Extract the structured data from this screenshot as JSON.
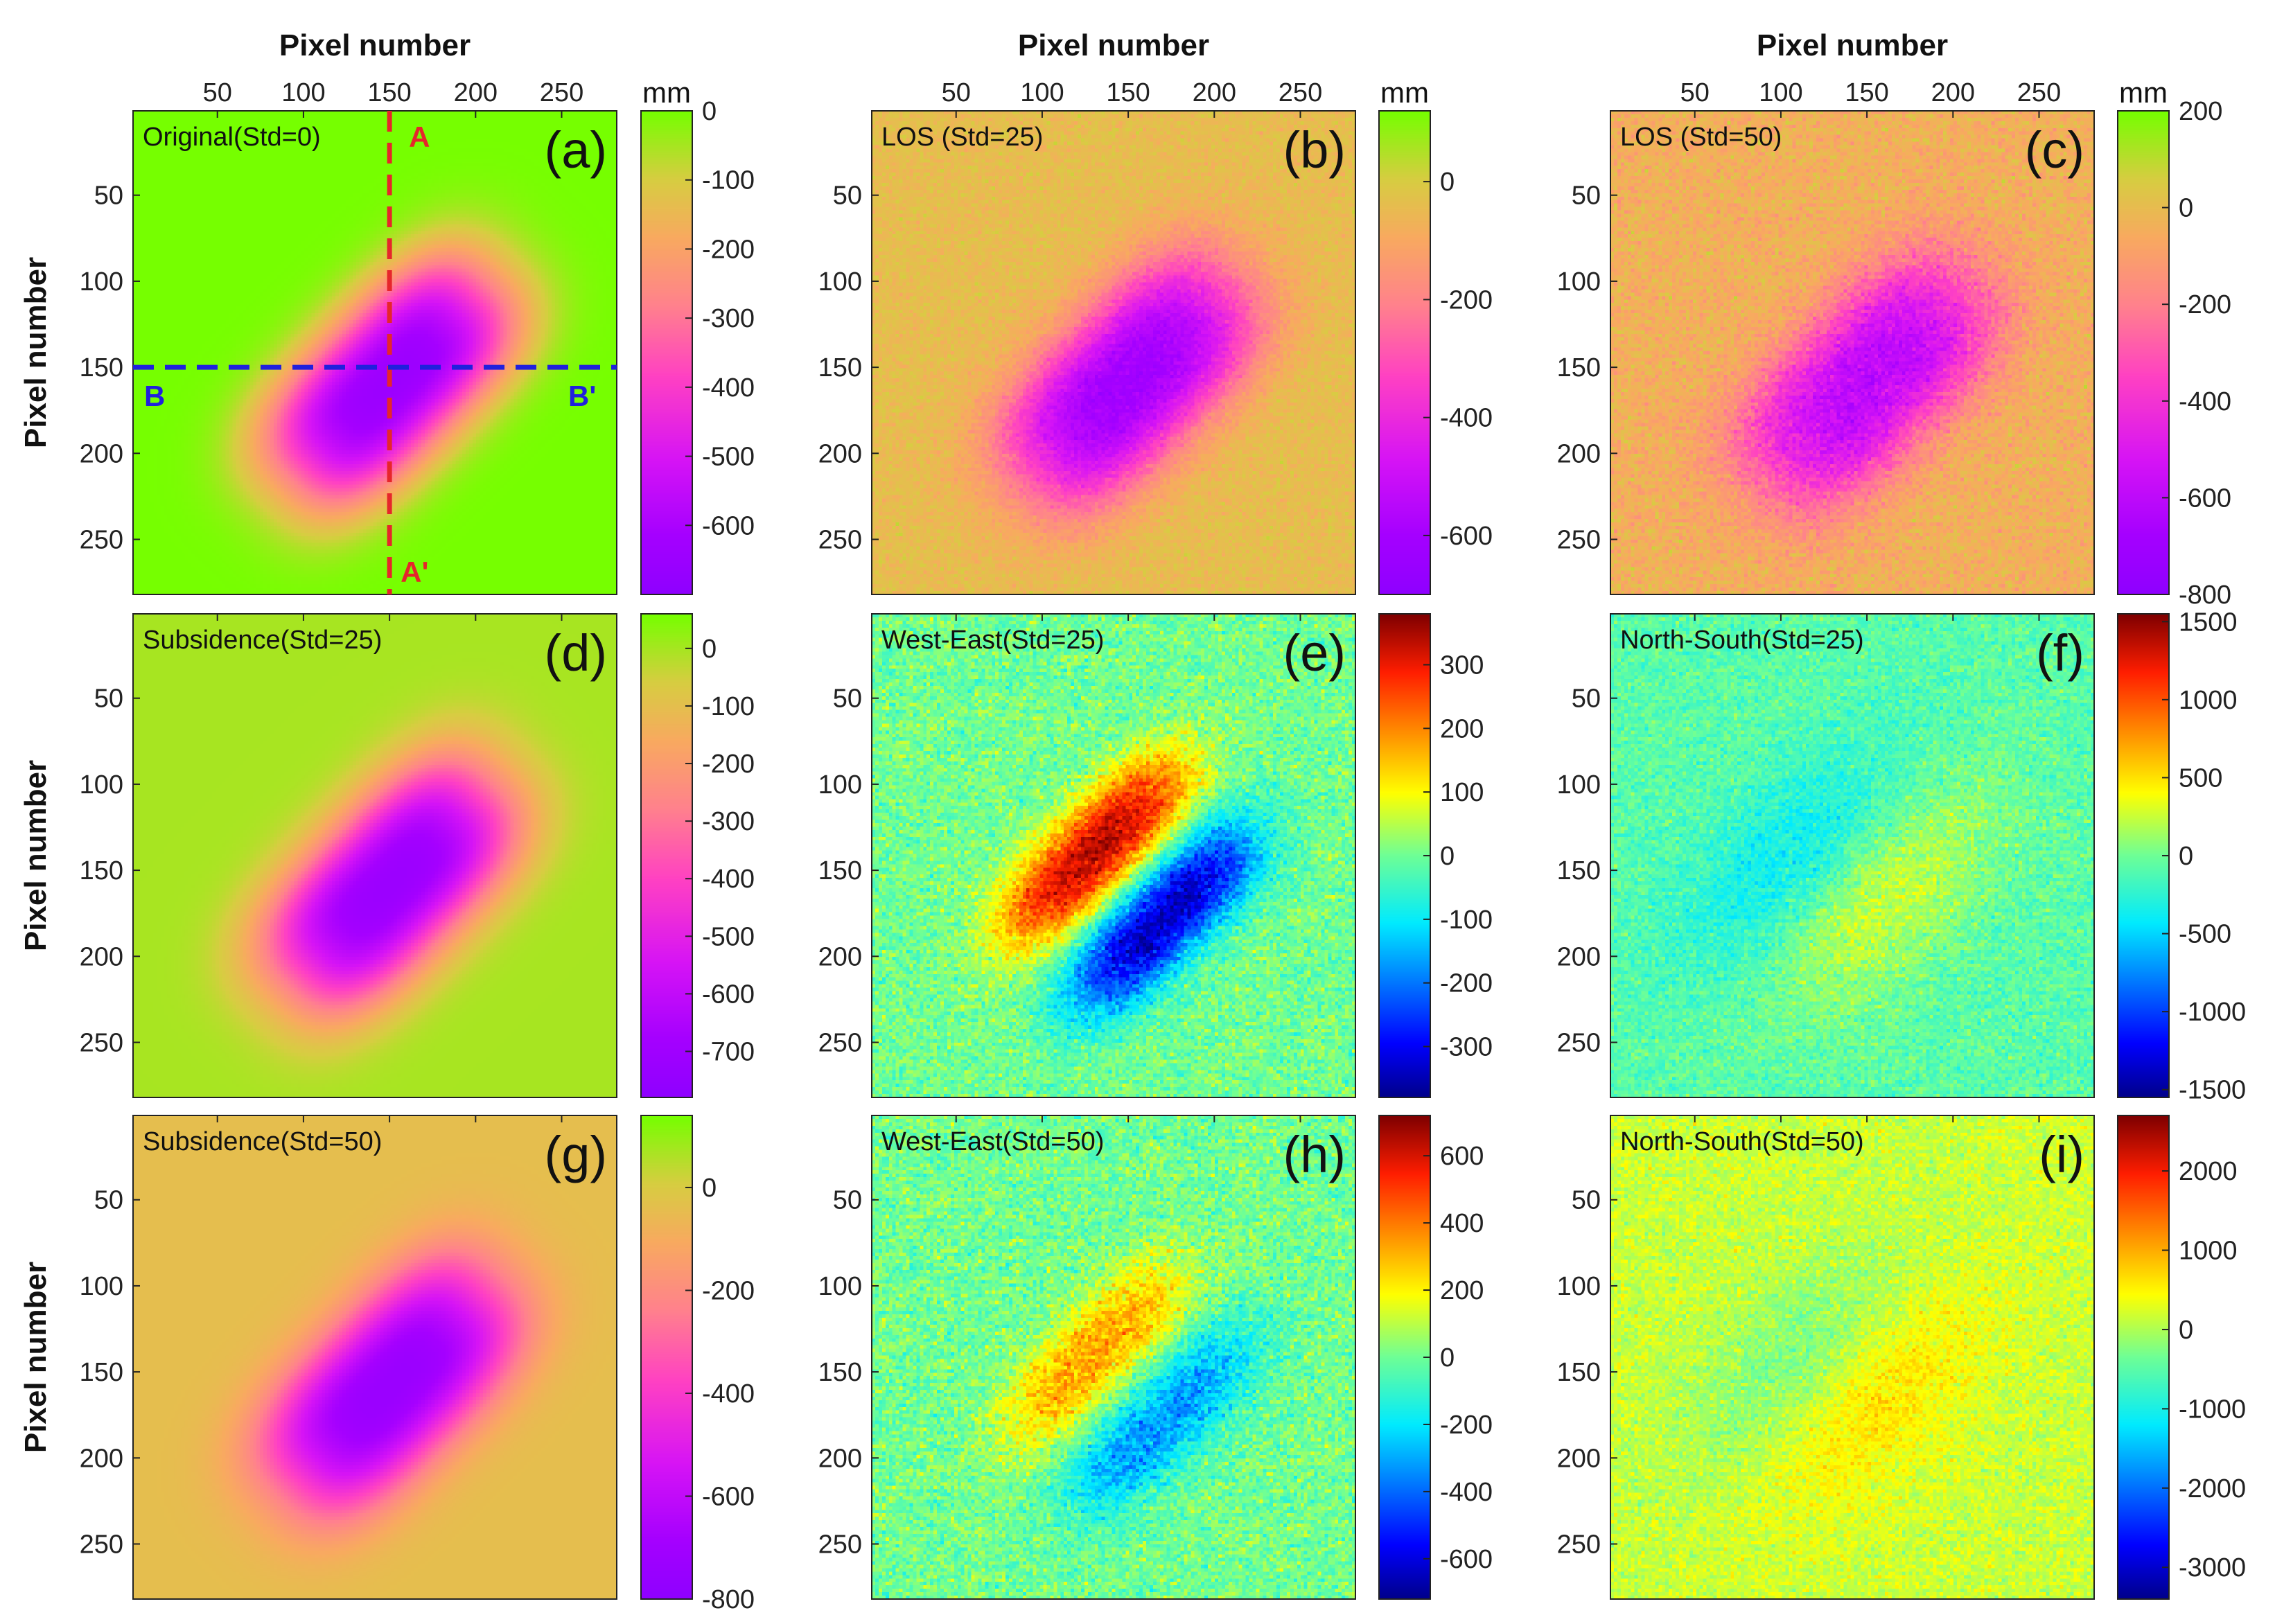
{
  "figure": {
    "x_axis_title": "Pixel number",
    "y_axis_title": "Pixel number",
    "colorbar_unit": "mm"
  },
  "chart_data": [
    {
      "id": "a",
      "type": "heatmap",
      "panel_label": "(a)",
      "title": "Original(Std=0)",
      "colormap": "rainbow_subsidence",
      "noise": 0,
      "pattern": "subsidence",
      "peak": -650,
      "background": 0,
      "clim": [
        -700,
        0
      ],
      "colorbar_ticks": [
        0,
        -100,
        -200,
        -300,
        -400,
        -500,
        -600
      ],
      "xlim": [
        1,
        282
      ],
      "ylim": [
        1,
        282
      ],
      "xticks": [
        50,
        100,
        150,
        200,
        250
      ],
      "yticks": [
        50,
        100,
        150,
        200,
        250
      ],
      "profiles": [
        {
          "name": "A-A'",
          "orientation": "vertical",
          "pixel": 150,
          "color": "#e6262b",
          "start_label": "A",
          "end_label": "A'"
        },
        {
          "name": "B-B'",
          "orientation": "horizontal",
          "pixel": 150,
          "color": "#2020dd",
          "start_label": "B",
          "end_label": "B'"
        }
      ]
    },
    {
      "id": "b",
      "type": "heatmap",
      "panel_label": "(b)",
      "title": "LOS (Std=25)",
      "colormap": "rainbow_subsidence",
      "noise": 25,
      "pattern": "subsidence",
      "peak": -610,
      "background": -40,
      "clim": [
        -700,
        120
      ],
      "colorbar_ticks": [
        0,
        -200,
        -400,
        -600
      ]
    },
    {
      "id": "c",
      "type": "heatmap",
      "panel_label": "(c)",
      "title": "LOS (Std=50)",
      "colormap": "rainbow_subsidence",
      "noise": 50,
      "pattern": "subsidence",
      "peak": -600,
      "background": -40,
      "clim": [
        -800,
        200
      ],
      "colorbar_ticks": [
        200,
        0,
        -200,
        -400,
        -600,
        -800
      ]
    },
    {
      "id": "d",
      "type": "heatmap",
      "panel_label": "(d)",
      "title": "Subsidence(Std=25)",
      "colormap": "rainbow_subsidence",
      "noise": 0,
      "pattern": "subsidence",
      "peak": -720,
      "background": 0,
      "clim": [
        -780,
        60
      ],
      "colorbar_ticks": [
        0,
        -100,
        -200,
        -300,
        -400,
        -500,
        -600,
        -700
      ]
    },
    {
      "id": "e",
      "type": "heatmap",
      "panel_label": "(e)",
      "title": "West-East(Std=25)",
      "colormap": "jet",
      "noise": 35,
      "pattern": "dipole",
      "peak": 340,
      "background": 0,
      "clim": [
        -380,
        380
      ],
      "colorbar_ticks": [
        300,
        200,
        100,
        0,
        -100,
        -200,
        -300
      ]
    },
    {
      "id": "f",
      "type": "heatmap",
      "panel_label": "(f)",
      "title": "North-South(Std=25)",
      "colormap": "jet",
      "noise": 110,
      "pattern": "ns",
      "peak": 380,
      "background": -80,
      "clim": [
        -1550,
        1550
      ],
      "colorbar_ticks": [
        1500,
        1000,
        500,
        0,
        -500,
        -1000,
        -1500
      ]
    },
    {
      "id": "g",
      "type": "heatmap",
      "panel_label": "(g)",
      "title": "Subsidence(Std=50)",
      "colormap": "rainbow_subsidence",
      "noise": 0,
      "pattern": "subsidence",
      "peak": -740,
      "background": -40,
      "clim": [
        -800,
        140
      ],
      "colorbar_ticks": [
        0,
        -200,
        -400,
        -600,
        -800
      ]
    },
    {
      "id": "h",
      "type": "heatmap",
      "panel_label": "(h)",
      "title": "West-East(Std=50)",
      "colormap": "jet",
      "noise": 70,
      "pattern": "dipole",
      "peak": 330,
      "background": 0,
      "clim": [
        -720,
        720
      ],
      "colorbar_ticks": [
        600,
        400,
        200,
        0,
        -200,
        -400,
        -600
      ]
    },
    {
      "id": "i",
      "type": "heatmap",
      "panel_label": "(i)",
      "title": "North-South(Std=50)",
      "colormap": "jet",
      "noise": 200,
      "pattern": "ns",
      "peak": 500,
      "background": 150,
      "clim": [
        -3400,
        2700
      ],
      "colorbar_ticks": [
        2000,
        1000,
        0,
        -1000,
        -2000,
        -3000
      ]
    }
  ]
}
